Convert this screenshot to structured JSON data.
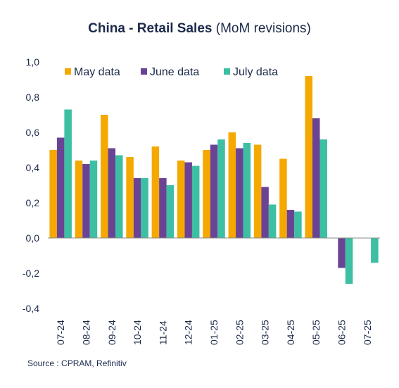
{
  "chart_data": {
    "type": "bar",
    "title_bold": "China - Retail Sales",
    "title_rest": " (MoM revisions)",
    "source": "Source : CPRAM, Refinitiv",
    "categories": [
      "07-24",
      "08-24",
      "09-24",
      "10-24",
      "11-24",
      "12-24",
      "01-25",
      "02-25",
      "03-25",
      "04-25",
      "05-25",
      "06-25",
      "07-25"
    ],
    "series": [
      {
        "name": "May data",
        "color": "#f5a800",
        "values": [
          0.5,
          0.44,
          0.7,
          0.46,
          0.52,
          0.44,
          0.5,
          0.6,
          0.53,
          0.45,
          0.92,
          null,
          null
        ]
      },
      {
        "name": "June data",
        "color": "#6b4394",
        "values": [
          0.57,
          0.42,
          0.51,
          0.34,
          0.34,
          0.43,
          0.53,
          0.51,
          0.29,
          0.16,
          0.68,
          -0.17,
          null
        ]
      },
      {
        "name": "July data",
        "color": "#3cbfa3",
        "values": [
          0.73,
          0.44,
          0.47,
          0.34,
          0.3,
          0.41,
          0.56,
          0.54,
          0.19,
          0.15,
          0.56,
          -0.26,
          -0.14
        ]
      }
    ],
    "ylim": [
      -0.4,
      1.0
    ],
    "yticks": [
      "1,0",
      "0,8",
      "0,6",
      "0,4",
      "0,2",
      "0,0",
      "-0,2",
      "-0,4"
    ],
    "ytick_values": [
      1.0,
      0.8,
      0.6,
      0.4,
      0.2,
      0.0,
      -0.2,
      -0.4
    ],
    "grid": false,
    "legend": "top-left"
  }
}
